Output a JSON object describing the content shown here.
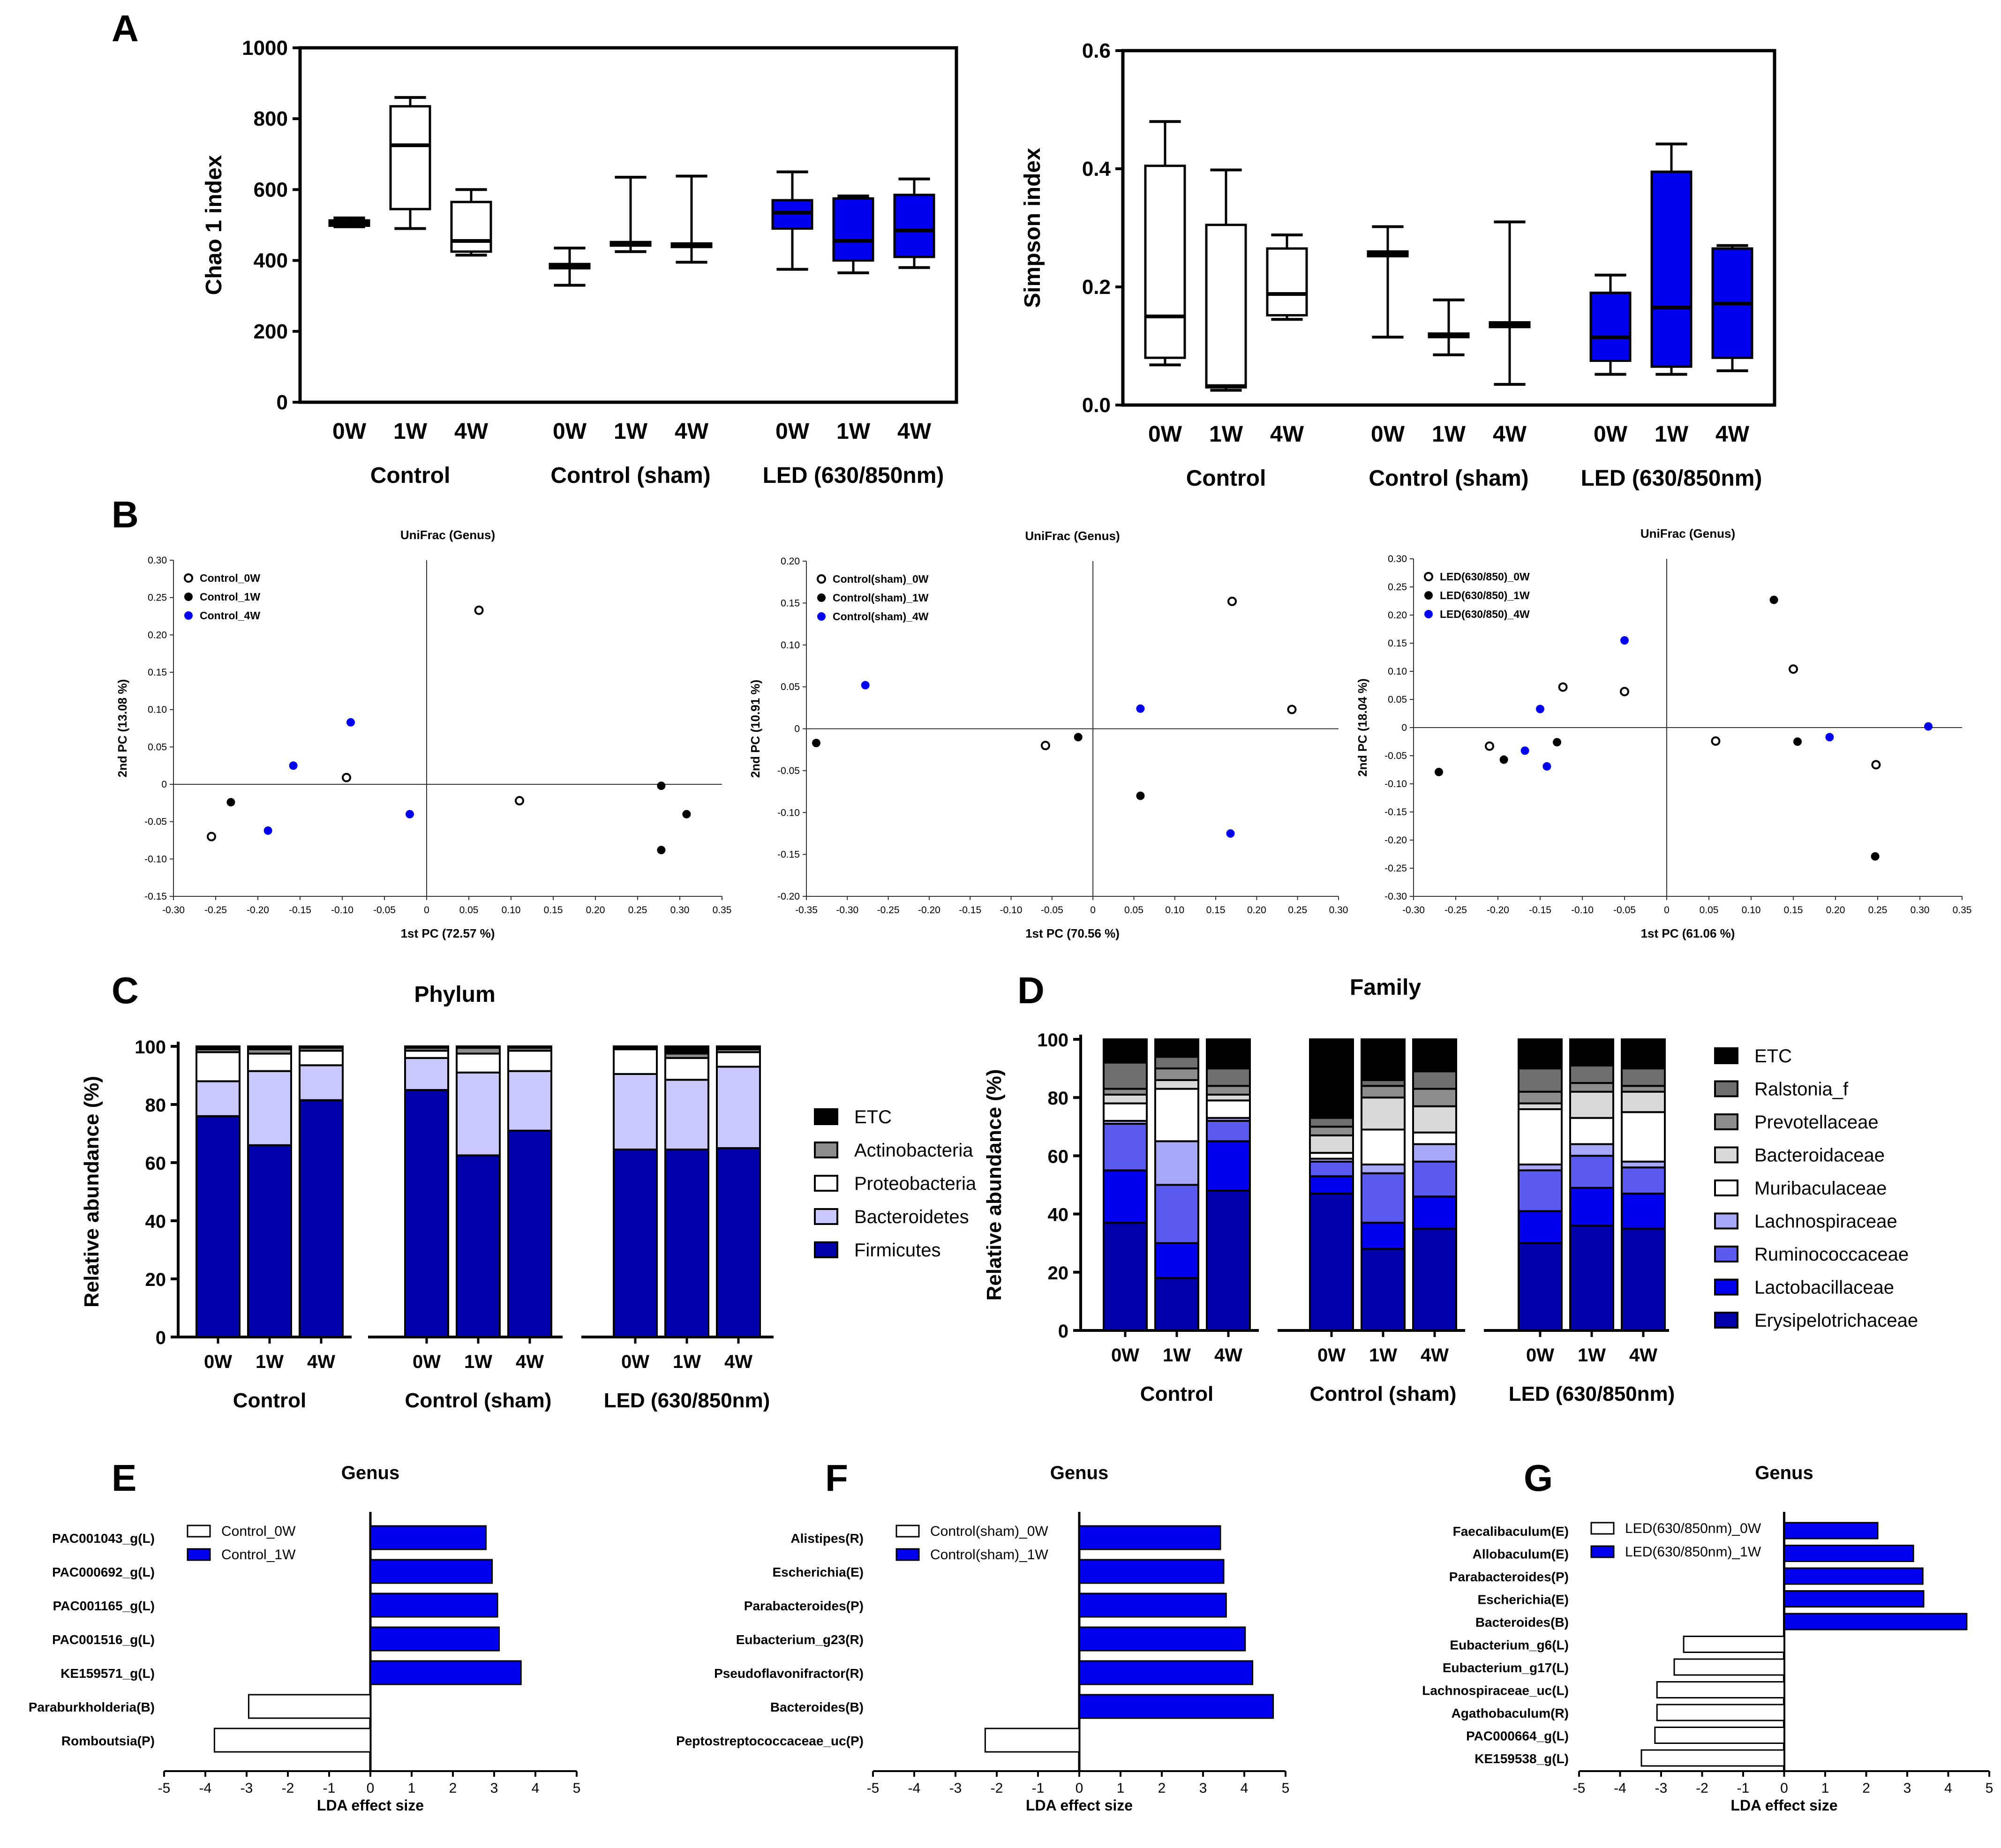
{
  "figure": {
    "panel_labels": [
      "A",
      "B",
      "C",
      "D",
      "E",
      "F",
      "G"
    ],
    "colors": {
      "blue": "#0000ee",
      "navy": "#0000aa",
      "mid_blue": "#5a5af0",
      "light_blue": "#c8c8ff",
      "lavender": "#a8a8f8",
      "black": "#000000",
      "white": "#ffffff",
      "gray_dark": "#6e6e6e",
      "gray_mid": "#8c8c8c",
      "gray_light": "#d9d9d9"
    }
  },
  "chart_data": [
    {
      "id": "A1",
      "type": "box",
      "ylabel": "Chao 1 index",
      "ylim": [
        0,
        1000
      ],
      "yticks": [
        0,
        200,
        400,
        600,
        800,
        1000
      ],
      "group_labels": [
        "Control",
        "Control (sham)",
        "LED (630/850nm)"
      ],
      "timepoint_labels": [
        "0W",
        "1W",
        "4W"
      ],
      "boxes": [
        {
          "group": "Control",
          "time": "0W",
          "min": 495,
          "q1": 498,
          "median": 505,
          "q3": 513,
          "max": 520,
          "fill": "white"
        },
        {
          "group": "Control",
          "time": "1W",
          "min": 490,
          "q1": 545,
          "median": 725,
          "q3": 835,
          "max": 860,
          "fill": "white"
        },
        {
          "group": "Control",
          "time": "4W",
          "min": 415,
          "q1": 425,
          "median": 455,
          "q3": 565,
          "max": 600,
          "fill": "white"
        },
        {
          "group": "Control (sham)",
          "time": "0W",
          "min": 330,
          "q1": 378,
          "median": 385,
          "q3": 390,
          "max": 435,
          "fill": "white"
        },
        {
          "group": "Control (sham)",
          "time": "1W",
          "min": 425,
          "q1": 442,
          "median": 448,
          "q3": 452,
          "max": 635,
          "fill": "white"
        },
        {
          "group": "Control (sham)",
          "time": "4W",
          "min": 395,
          "q1": 438,
          "median": 443,
          "q3": 448,
          "max": 638,
          "fill": "white"
        },
        {
          "group": "LED (630/850nm)",
          "time": "0W",
          "min": 375,
          "q1": 490,
          "median": 535,
          "q3": 570,
          "max": 650,
          "fill": "blue"
        },
        {
          "group": "LED (630/850nm)",
          "time": "1W",
          "min": 365,
          "q1": 400,
          "median": 455,
          "q3": 575,
          "max": 582,
          "fill": "blue"
        },
        {
          "group": "LED (630/850nm)",
          "time": "4W",
          "min": 380,
          "q1": 410,
          "median": 485,
          "q3": 585,
          "max": 630,
          "fill": "blue"
        }
      ]
    },
    {
      "id": "A2",
      "type": "box",
      "ylabel": "Simpson index",
      "ylim": [
        0,
        0.6
      ],
      "yticks": [
        "0.0",
        "0.2",
        "0.4",
        "0.6"
      ],
      "group_labels": [
        "Control",
        "Control (sham)",
        "LED (630/850nm)"
      ],
      "timepoint_labels": [
        "0W",
        "1W",
        "4W"
      ],
      "boxes": [
        {
          "group": "Control",
          "time": "0W",
          "min": 0.068,
          "q1": 0.08,
          "median": 0.15,
          "q3": 0.405,
          "max": 0.48,
          "fill": "white"
        },
        {
          "group": "Control",
          "time": "1W",
          "min": 0.025,
          "q1": 0.03,
          "median": 0.032,
          "q3": 0.305,
          "max": 0.398,
          "fill": "white"
        },
        {
          "group": "Control",
          "time": "4W",
          "min": 0.145,
          "q1": 0.152,
          "median": 0.188,
          "q3": 0.265,
          "max": 0.288,
          "fill": "white"
        },
        {
          "group": "Control (sham)",
          "time": "0W",
          "min": 0.115,
          "q1": 0.252,
          "median": 0.256,
          "q3": 0.26,
          "max": 0.302,
          "fill": "white"
        },
        {
          "group": "Control (sham)",
          "time": "1W",
          "min": 0.085,
          "q1": 0.115,
          "median": 0.118,
          "q3": 0.121,
          "max": 0.178,
          "fill": "white"
        },
        {
          "group": "Control (sham)",
          "time": "4W",
          "min": 0.035,
          "q1": 0.132,
          "median": 0.136,
          "q3": 0.14,
          "max": 0.31,
          "fill": "white"
        },
        {
          "group": "LED (630/850nm)",
          "time": "0W",
          "min": 0.052,
          "q1": 0.075,
          "median": 0.115,
          "q3": 0.19,
          "max": 0.22,
          "fill": "blue"
        },
        {
          "group": "LED (630/850nm)",
          "time": "1W",
          "min": 0.052,
          "q1": 0.065,
          "median": 0.165,
          "q3": 0.395,
          "max": 0.442,
          "fill": "blue"
        },
        {
          "group": "LED (630/850nm)",
          "time": "4W",
          "min": 0.058,
          "q1": 0.08,
          "median": 0.172,
          "q3": 0.265,
          "max": 0.27,
          "fill": "blue"
        }
      ]
    },
    {
      "id": "B1",
      "type": "scatter",
      "title": "UniFrac (Genus)",
      "xlabel": "1st PC (72.57 %)",
      "ylabel": "2nd PC (13.08 %)",
      "xlim": [
        -0.3,
        0.35
      ],
      "ylim": [
        -0.15,
        0.3
      ],
      "xticks": [
        "-0.30",
        "-0.25",
        "-0.20",
        "-0.15",
        "-0.10",
        "-0.05",
        "0",
        "0.05",
        "0.10",
        "0.15",
        "0.20",
        "0.25",
        "0.30",
        "0.35"
      ],
      "yticks": [
        "-0.15",
        "-0.10",
        "-0.05",
        "0",
        "0.05",
        "0.10",
        "0.15",
        "0.20",
        "0.25",
        "0.30"
      ],
      "series": [
        {
          "name": "Control_0W",
          "style": "open",
          "points": [
            [
              0.062,
              0.233
            ],
            [
              0.11,
              -0.022
            ],
            [
              -0.095,
              0.009
            ],
            [
              -0.255,
              -0.07
            ]
          ]
        },
        {
          "name": "Control_1W",
          "style": "black",
          "points": [
            [
              -0.232,
              -0.024
            ],
            [
              0.278,
              -0.002
            ],
            [
              0.308,
              -0.04
            ],
            [
              0.278,
              -0.088
            ]
          ]
        },
        {
          "name": "Control_4W",
          "style": "blue",
          "points": [
            [
              -0.09,
              0.083
            ],
            [
              -0.158,
              0.025
            ],
            [
              -0.188,
              -0.062
            ],
            [
              -0.02,
              -0.04
            ]
          ]
        }
      ]
    },
    {
      "id": "B2",
      "type": "scatter",
      "title": "UniFrac (Genus)",
      "xlabel": "1st PC (70.56 %)",
      "ylabel": "2nd PC (10.91 %)",
      "xlim": [
        -0.35,
        0.3
      ],
      "ylim": [
        -0.2,
        0.2
      ],
      "xticks": [
        "-0.35",
        "-0.30",
        "-0.25",
        "-0.20",
        "-0.15",
        "-0.10",
        "-0.05",
        "0",
        "0.05",
        "0.10",
        "0.15",
        "0.20",
        "0.25",
        "0.30"
      ],
      "yticks": [
        "-0.20",
        "-0.15",
        "-0.10",
        "-0.05",
        "0",
        "0.05",
        "0.10",
        "0.15",
        "0.20"
      ],
      "series": [
        {
          "name": "Control(sham)_0W",
          "style": "open",
          "points": [
            [
              0.17,
              0.152
            ],
            [
              0.243,
              0.023
            ],
            [
              -0.058,
              -0.02
            ]
          ]
        },
        {
          "name": "Control(sham)_1W",
          "style": "black",
          "points": [
            [
              -0.338,
              -0.017
            ],
            [
              -0.018,
              -0.01
            ],
            [
              0.058,
              -0.08
            ]
          ]
        },
        {
          "name": "Control(sham)_4W",
          "style": "blue",
          "points": [
            [
              -0.278,
              0.052
            ],
            [
              0.058,
              0.024
            ],
            [
              0.168,
              -0.125
            ]
          ]
        }
      ]
    },
    {
      "id": "B3",
      "type": "scatter",
      "title": "UniFrac (Genus)",
      "xlabel": "1st PC (61.06 %)",
      "ylabel": "2nd PC (18.04 %)",
      "xlim": [
        -0.3,
        0.35
      ],
      "ylim": [
        -0.3,
        0.3
      ],
      "xticks": [
        "-0.30",
        "-0.25",
        "-0.20",
        "-0.15",
        "-0.10",
        "-0.05",
        "0",
        "0.05",
        "0.10",
        "0.15",
        "0.20",
        "0.25",
        "0.30",
        "0.35"
      ],
      "yticks": [
        "-0.30",
        "-0.25",
        "-0.20",
        "-0.15",
        "-0.10",
        "-0.05",
        "0",
        "0.05",
        "0.10",
        "0.15",
        "0.20",
        "0.25",
        "0.30"
      ],
      "series": [
        {
          "name": "LED(630/850)_0W",
          "style": "open",
          "points": [
            [
              -0.123,
              0.072
            ],
            [
              -0.05,
              0.064
            ],
            [
              -0.21,
              -0.033
            ],
            [
              0.058,
              -0.024
            ],
            [
              0.15,
              0.104
            ],
            [
              0.248,
              -0.066
            ]
          ]
        },
        {
          "name": "LED(630/850)_1W",
          "style": "black",
          "points": [
            [
              -0.27,
              -0.079
            ],
            [
              -0.193,
              -0.057
            ],
            [
              -0.13,
              -0.026
            ],
            [
              0.127,
              0.227
            ],
            [
              0.155,
              -0.025
            ],
            [
              0.247,
              -0.229
            ]
          ]
        },
        {
          "name": "LED(630/850)_4W",
          "style": "blue",
          "points": [
            [
              -0.05,
              0.155
            ],
            [
              -0.15,
              0.033
            ],
            [
              -0.168,
              -0.041
            ],
            [
              -0.142,
              -0.069
            ],
            [
              0.193,
              -0.017
            ],
            [
              0.31,
              0.002
            ]
          ]
        }
      ]
    },
    {
      "id": "C",
      "type": "stacked-bar",
      "title": "Phylum",
      "ylabel": "Relative abundance (%)",
      "ylim": [
        0,
        100
      ],
      "yticks": [
        0,
        20,
        40,
        60,
        80,
        100
      ],
      "group_labels": [
        "Control",
        "Control (sham)",
        "LED (630/850nm)"
      ],
      "timepoint_labels": [
        "0W",
        "1W",
        "4W"
      ],
      "series_names": [
        "Firmicutes",
        "Bacteroidetes",
        "Proteobacteria",
        "Actinobacteria",
        "ETC"
      ],
      "series_colors": [
        "navy",
        "light_blue",
        "white",
        "gray_mid",
        "black"
      ],
      "legend_order": [
        "ETC",
        "Actinobacteria",
        "Proteobacteria",
        "Bacteroidetes",
        "Firmicutes"
      ],
      "bars": [
        [
          76,
          12,
          10,
          1,
          1
        ],
        [
          66,
          25.5,
          6,
          1.5,
          1
        ],
        [
          81.5,
          12,
          5,
          1,
          0.5
        ],
        [
          85,
          11,
          2.5,
          1,
          0.5
        ],
        [
          62.5,
          28.5,
          6.5,
          2,
          0.5
        ],
        [
          71,
          20.5,
          7,
          1,
          0.5
        ],
        [
          64.5,
          26,
          8.5,
          0.5,
          0.5
        ],
        [
          64.5,
          24,
          7.5,
          1.5,
          2.5
        ],
        [
          65,
          28,
          5,
          1,
          1
        ]
      ]
    },
    {
      "id": "D",
      "type": "stacked-bar",
      "title": "Family",
      "ylabel": "Relative abundance (%)",
      "ylim": [
        0,
        100
      ],
      "yticks": [
        0,
        20,
        40,
        60,
        80,
        100
      ],
      "group_labels": [
        "Control",
        "Control (sham)",
        "LED (630/850nm)"
      ],
      "timepoint_labels": [
        "0W",
        "1W",
        "4W"
      ],
      "series_names": [
        "Erysipelotrichaceae",
        "Lactobacillaceae",
        "Ruminococcaceae",
        "Lachnospiraceae",
        "Muribaculaceae",
        "Bacteroidaceae",
        "Prevotellaceae",
        "Ralstonia_f",
        "ETC"
      ],
      "series_colors": [
        "navy",
        "blue",
        "mid_blue",
        "lavender",
        "white",
        "gray_light",
        "gray_mid",
        "gray_dark",
        "black"
      ],
      "legend_order": [
        "ETC",
        "Ralstonia_f",
        "Prevotellaceae",
        "Bacteroidaceae",
        "Muribaculaceae",
        "Lachnospiraceae",
        "Ruminococcaceae",
        "Lactobacillaceae",
        "Erysipelotrichaceae"
      ],
      "bars": [
        [
          37,
          18,
          16,
          1,
          6,
          3,
          2,
          9,
          8
        ],
        [
          18,
          12,
          20,
          15,
          18,
          3,
          4,
          4,
          6
        ],
        [
          48,
          17,
          7,
          1,
          6,
          2,
          3,
          6,
          10
        ],
        [
          47,
          6,
          5,
          1,
          2,
          6,
          3,
          3,
          27
        ],
        [
          28,
          9,
          17,
          3,
          12,
          11,
          4,
          2,
          14
        ],
        [
          35,
          11,
          12,
          6,
          4,
          9,
          6,
          6,
          11
        ],
        [
          30,
          11,
          14,
          2,
          19,
          2,
          4,
          8,
          10
        ],
        [
          36,
          13,
          11,
          4,
          9,
          9,
          3,
          6,
          9
        ],
        [
          35,
          12,
          9,
          2,
          17,
          7,
          2,
          6,
          10
        ]
      ]
    },
    {
      "id": "E",
      "type": "hbar",
      "title": "Genus",
      "xlabel": "LDA effect size",
      "xlim": [
        -5,
        5
      ],
      "xticks": [
        -5,
        -4,
        -3,
        -2,
        -1,
        0,
        1,
        2,
        3,
        4,
        5
      ],
      "legend": [
        {
          "name": "Control_0W",
          "fill": "white"
        },
        {
          "name": "Control_1W",
          "fill": "blue"
        }
      ],
      "categories": [
        "PAC001043_g(L)",
        "PAC000692_g(L)",
        "PAC001165_g(L)",
        "PAC001516_g(L)",
        "KE159571_g(L)",
        "Paraburkholderia(B)",
        "Romboutsia(P)"
      ],
      "values": [
        2.8,
        2.95,
        3.08,
        3.12,
        3.65,
        -2.95,
        -3.78
      ]
    },
    {
      "id": "F",
      "type": "hbar",
      "title": "Genus",
      "xlabel": "LDA effect size",
      "xlim": [
        -5,
        5
      ],
      "xticks": [
        -5,
        -4,
        -3,
        -2,
        -1,
        0,
        1,
        2,
        3,
        4,
        5
      ],
      "legend": [
        {
          "name": "Control(sham)_0W",
          "fill": "white"
        },
        {
          "name": "Control(sham)_1W",
          "fill": "blue"
        }
      ],
      "categories": [
        "Alistipes(R)",
        "Escherichia(E)",
        "Parabacteroides(P)",
        "Eubacterium_g23(R)",
        "Pseudoflavonifractor(R)",
        "Bacteroides(B)",
        "Peptostreptococcaceae_uc(P)"
      ],
      "values": [
        3.42,
        3.5,
        3.56,
        4.02,
        4.2,
        4.7,
        -2.28
      ]
    },
    {
      "id": "G",
      "type": "hbar",
      "title": "Genus",
      "xlabel": "LDA effect size",
      "xlim": [
        -5,
        5
      ],
      "xticks": [
        -5,
        -4,
        -3,
        -2,
        -1,
        0,
        1,
        2,
        3,
        4,
        5
      ],
      "legend": [
        {
          "name": "LED(630/850nm)_0W",
          "fill": "white"
        },
        {
          "name": "LED(630/850nm)_1W",
          "fill": "blue"
        }
      ],
      "categories": [
        "Faecalibaculum(E)",
        "Allobaculum(E)",
        "Parabacteroides(P)",
        "Escherichia(E)",
        "Bacteroides(B)",
        "Eubacterium_g6(L)",
        "Eubacterium_g17(L)",
        "Lachnospiraceae_uc(L)",
        "Agathobaculum(R)",
        "PAC000664_g(L)",
        "KE159538_g(L)"
      ],
      "values": [
        2.28,
        3.15,
        3.38,
        3.4,
        4.45,
        -2.45,
        -2.68,
        -3.1,
        -3.1,
        -3.15,
        -3.48
      ]
    }
  ]
}
